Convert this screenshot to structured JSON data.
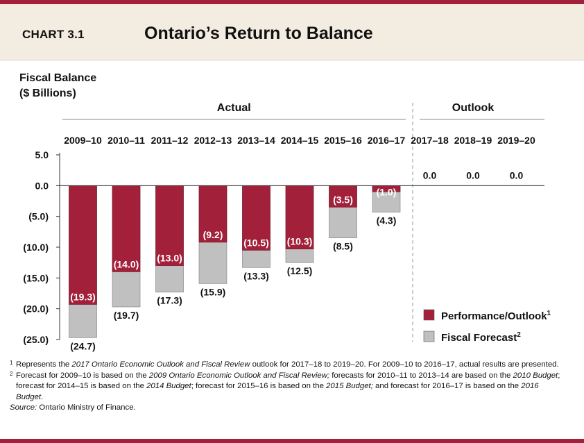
{
  "header": {
    "chart_number": "CHART 3.1",
    "title": "Ontario’s Return to Balance"
  },
  "colors": {
    "accent": "#a3203a",
    "performance": "#a3203a",
    "forecast": "#c0c0c0",
    "header_bg": "#f3ece1"
  },
  "chart_data": {
    "type": "bar",
    "title": "Ontario’s Return to Balance",
    "ylabel": "Fiscal Balance\n($ Billions)",
    "ylim": [
      -25.0,
      5.0
    ],
    "yticks": [
      5.0,
      0.0,
      -5.0,
      -10.0,
      -15.0,
      -20.0,
      -25.0
    ],
    "ytick_labels": [
      "5.0",
      "0.0",
      "(5.0)",
      "(10.0)",
      "(15.0)",
      "(20.0)",
      "(25.0)"
    ],
    "grid": false,
    "legend_position": "bottom-right",
    "groups": [
      {
        "label": "Actual",
        "from": 0,
        "to": 7
      },
      {
        "label": "Outlook",
        "from": 8,
        "to": 10
      }
    ],
    "categories": [
      "2009–10",
      "2010–11",
      "2011–12",
      "2012–13",
      "2013–14",
      "2014–15",
      "2015–16",
      "2016–17",
      "2017–18",
      "2018–19",
      "2019–20"
    ],
    "series": [
      {
        "name": "Performance/Outlook",
        "footnote": "1",
        "color": "#a3203a",
        "values": [
          -19.3,
          -14.0,
          -13.0,
          -9.2,
          -10.5,
          -10.3,
          -3.5,
          -1.0,
          0.0,
          0.0,
          0.0
        ],
        "labels": [
          "(19.3)",
          "(14.0)",
          "(13.0)",
          "(9.2)",
          "(10.5)",
          "(10.3)",
          "(3.5)",
          "(1.0)",
          "0.0",
          "0.0",
          "0.0"
        ]
      },
      {
        "name": "Fiscal Forecast",
        "footnote": "2",
        "color": "#c0c0c0",
        "values": [
          -24.7,
          -19.7,
          -17.3,
          -15.9,
          -13.3,
          -12.5,
          -8.5,
          -4.3,
          null,
          null,
          null
        ],
        "labels": [
          "(24.7)",
          "(19.7)",
          "(17.3)",
          "(15.9)",
          "(13.3)",
          "(12.5)",
          "(8.5)",
          "(4.3)",
          null,
          null,
          null
        ]
      }
    ]
  },
  "footnotes": {
    "fn1": {
      "mark": "1",
      "a": "Represents the ",
      "b": "2017 Ontario Economic Outlook and Fiscal Review",
      "c": " outlook for 2017–18 to 2019–20. For 2009–10 to 2016–17, actual results are presented."
    },
    "fn2": {
      "mark": "2",
      "a": "Forecast for 2009–10 is based on the ",
      "b": "2009 Ontario Economic Outlook and Fiscal Review;",
      "c": " forecasts for 2010–11 to 2013–14 are based on the ",
      "d": "2010 Budget",
      "e": "; forecast for 2014–15 is based on the ",
      "f": "2014 Budget",
      "g": "; forecast for 2015–16 is based on the ",
      "h": "2015 Budget;",
      "i": " and forecast for 2016–17 is based on the ",
      "j": "2016 Budget",
      "k": "."
    },
    "source": {
      "label": "Source:",
      "text": " Ontario Ministry of Finance."
    }
  }
}
